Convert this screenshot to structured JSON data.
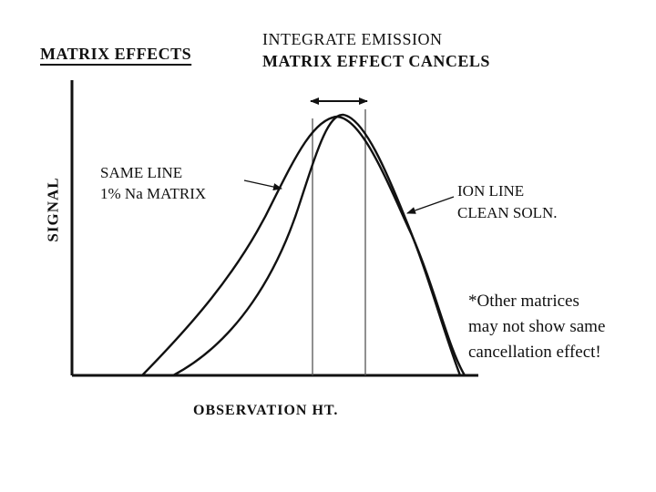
{
  "title": {
    "main": "MATRIX  EFFECTS",
    "line1": "INTEGRATE  EMISSION",
    "line2": "MATRIX  EFFECT  CANCELS"
  },
  "axes": {
    "ylabel": "SIGNAL",
    "xlabel": "OBSERVATION  HT."
  },
  "curve_labels": {
    "same_line": [
      "SAME  LINE",
      "1% Na  MATRIX"
    ],
    "ion_line": [
      "ION LINE",
      "CLEAN  SOLN."
    ]
  },
  "note": [
    "*Other matrices",
    "may not show same",
    "cancellation effect!"
  ],
  "colors": {
    "ink": "#111111",
    "background": "#ffffff"
  },
  "icons": {
    "integration_window": "double-headed-arrow-icon"
  }
}
